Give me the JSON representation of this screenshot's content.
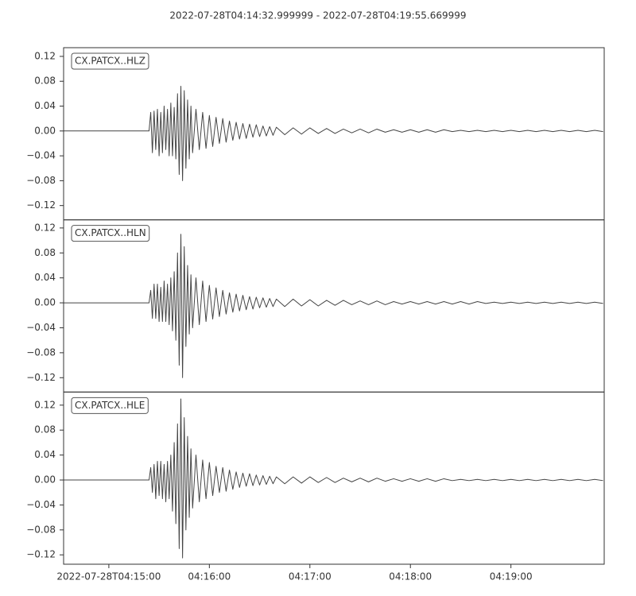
{
  "title": "2022-07-28T04:14:32.999999  -  2022-07-28T04:19:55.669999",
  "chart_data": [
    {
      "type": "line",
      "label": "CX.PATCX..HLZ",
      "color": "#444444",
      "xlim": [
        15272.999999,
        15595.669999
      ],
      "ylim": [
        -0.143,
        0.134
      ],
      "yticks": [
        {
          "value": -0.12,
          "label": "−0.12"
        },
        {
          "value": -0.08,
          "label": "−0.08"
        },
        {
          "value": -0.04,
          "label": "−0.04"
        },
        {
          "value": 0,
          "label": "0.00"
        },
        {
          "value": 0.04,
          "label": "0.04"
        },
        {
          "value": 0.08,
          "label": "0.08"
        },
        {
          "value": 0.12,
          "label": "0.12"
        }
      ],
      "x": [
        15273,
        15324,
        15325,
        15326,
        15327,
        15328,
        15329,
        15330,
        15331,
        15332,
        15333,
        15334,
        15335,
        15336,
        15337,
        15338,
        15339,
        15340,
        15341,
        15342,
        15343,
        15344,
        15345,
        15346,
        15347,
        15348,
        15349,
        15350,
        15352,
        15354,
        15356,
        15358,
        15360,
        15362,
        15364,
        15366,
        15368,
        15370,
        15372,
        15374,
        15376,
        15378,
        15380,
        15382,
        15384,
        15386,
        15388,
        15390,
        15392,
        15394,
        15396,
        15398,
        15400,
        15405,
        15410,
        15415,
        15420,
        15425,
        15430,
        15435,
        15440,
        15445,
        15450,
        15455,
        15460,
        15465,
        15470,
        15475,
        15480,
        15485,
        15490,
        15495,
        15500,
        15505,
        15510,
        15515,
        15520,
        15525,
        15530,
        15535,
        15540,
        15545,
        15550,
        15555,
        15560,
        15565,
        15570,
        15575,
        15580,
        15585,
        15590,
        15595
      ],
      "values": [
        0,
        0,
        0.03,
        -0.035,
        0.032,
        -0.03,
        0.035,
        -0.04,
        0.03,
        -0.035,
        0.04,
        -0.03,
        0.035,
        -0.04,
        0.045,
        -0.04,
        0.038,
        -0.045,
        0.06,
        -0.07,
        0.072,
        -0.08,
        0.065,
        -0.06,
        0.05,
        -0.045,
        0.04,
        -0.035,
        0.035,
        -0.03,
        0.03,
        -0.028,
        0.025,
        -0.025,
        0.022,
        -0.02,
        0.02,
        -0.018,
        0.016,
        -0.015,
        0.014,
        -0.013,
        0.012,
        -0.012,
        0.011,
        -0.01,
        0.01,
        -0.009,
        0.008,
        -0.008,
        0.007,
        -0.007,
        0.006,
        -0.006,
        0.005,
        -0.005,
        0.005,
        -0.004,
        0.004,
        -0.004,
        0.003,
        -0.003,
        0.003,
        -0.003,
        0.003,
        -0.002,
        0.002,
        -0.002,
        0.002,
        -0.002,
        0.002,
        -0.002,
        0.002,
        -0.001,
        0.001,
        -0.001,
        0.001,
        -0.001,
        0.001,
        -0.001,
        0.001,
        -0.001,
        0.001,
        -0.001,
        0.001,
        -0.001,
        0.001,
        -0.001,
        0.001,
        -0.001,
        0.001,
        -0.001
      ]
    },
    {
      "type": "line",
      "label": "CX.PATCX..HLN",
      "color": "#444444",
      "xlim": [
        15272.999999,
        15595.669999
      ],
      "ylim": [
        -0.143,
        0.133
      ],
      "yticks": [
        {
          "value": -0.12,
          "label": "−0.12"
        },
        {
          "value": -0.08,
          "label": "−0.08"
        },
        {
          "value": -0.04,
          "label": "−0.04"
        },
        {
          "value": 0,
          "label": "0.00"
        },
        {
          "value": 0.04,
          "label": "0.04"
        },
        {
          "value": 0.08,
          "label": "0.08"
        },
        {
          "value": 0.12,
          "label": "0.12"
        }
      ],
      "x": [
        15273,
        15324,
        15325,
        15326,
        15327,
        15328,
        15329,
        15330,
        15331,
        15332,
        15333,
        15334,
        15335,
        15336,
        15337,
        15338,
        15339,
        15340,
        15341,
        15342,
        15343,
        15344,
        15345,
        15346,
        15347,
        15348,
        15349,
        15350,
        15352,
        15354,
        15356,
        15358,
        15360,
        15362,
        15364,
        15366,
        15368,
        15370,
        15372,
        15374,
        15376,
        15378,
        15380,
        15382,
        15384,
        15386,
        15388,
        15390,
        15392,
        15394,
        15396,
        15398,
        15400,
        15405,
        15410,
        15415,
        15420,
        15425,
        15430,
        15435,
        15440,
        15445,
        15450,
        15455,
        15460,
        15465,
        15470,
        15475,
        15480,
        15485,
        15490,
        15495,
        15500,
        15505,
        15510,
        15515,
        15520,
        15525,
        15530,
        15535,
        15540,
        15545,
        15550,
        15555,
        15560,
        15565,
        15570,
        15575,
        15580,
        15585,
        15590,
        15595
      ],
      "values": [
        0,
        0,
        0.02,
        -0.025,
        0.03,
        -0.025,
        0.03,
        -0.03,
        0.025,
        -0.03,
        0.035,
        -0.03,
        0.03,
        -0.035,
        0.04,
        -0.045,
        0.05,
        -0.06,
        0.08,
        -0.1,
        0.11,
        -0.12,
        0.09,
        -0.07,
        0.06,
        -0.05,
        0.045,
        -0.04,
        0.04,
        -0.035,
        0.035,
        -0.03,
        0.028,
        -0.026,
        0.024,
        -0.022,
        0.02,
        -0.018,
        0.016,
        -0.015,
        0.014,
        -0.013,
        0.012,
        -0.011,
        0.01,
        -0.01,
        0.009,
        -0.008,
        0.008,
        -0.007,
        0.007,
        -0.006,
        0.006,
        -0.006,
        0.006,
        -0.005,
        0.005,
        -0.005,
        0.004,
        -0.004,
        0.004,
        -0.003,
        0.003,
        -0.003,
        0.003,
        -0.003,
        0.002,
        -0.002,
        0.002,
        -0.002,
        0.002,
        -0.002,
        0.002,
        -0.002,
        0.002,
        -0.002,
        0.002,
        -0.001,
        0.001,
        -0.001,
        0.001,
        -0.001,
        0.001,
        -0.001,
        0.001,
        -0.001,
        0.001,
        -0.001,
        0.001,
        -0.001,
        0.001,
        -0.001
      ]
    },
    {
      "type": "line",
      "label": "CX.PATCX..HLE",
      "color": "#444444",
      "xlim": [
        15272.999999,
        15595.669999
      ],
      "ylim": [
        -0.135,
        0.141
      ],
      "yticks": [
        {
          "value": -0.12,
          "label": "−0.12"
        },
        {
          "value": -0.08,
          "label": "−0.08"
        },
        {
          "value": -0.04,
          "label": "−0.04"
        },
        {
          "value": 0,
          "label": "0.00"
        },
        {
          "value": 0.04,
          "label": "0.04"
        },
        {
          "value": 0.08,
          "label": "0.08"
        },
        {
          "value": 0.12,
          "label": "0.12"
        }
      ],
      "xticks": [
        {
          "value": 15300,
          "label": "2022-07-28T04:15:00"
        },
        {
          "value": 15360,
          "label": "04:16:00"
        },
        {
          "value": 15420,
          "label": "04:17:00"
        },
        {
          "value": 15480,
          "label": "04:18:00"
        },
        {
          "value": 15540,
          "label": "04:19:00"
        }
      ],
      "x": [
        15273,
        15324,
        15325,
        15326,
        15327,
        15328,
        15329,
        15330,
        15331,
        15332,
        15333,
        15334,
        15335,
        15336,
        15337,
        15338,
        15339,
        15340,
        15341,
        15342,
        15343,
        15344,
        15345,
        15346,
        15347,
        15348,
        15349,
        15350,
        15352,
        15354,
        15356,
        15358,
        15360,
        15362,
        15364,
        15366,
        15368,
        15370,
        15372,
        15374,
        15376,
        15378,
        15380,
        15382,
        15384,
        15386,
        15388,
        15390,
        15392,
        15394,
        15396,
        15398,
        15400,
        15405,
        15410,
        15415,
        15420,
        15425,
        15430,
        15435,
        15440,
        15445,
        15450,
        15455,
        15460,
        15465,
        15470,
        15475,
        15480,
        15485,
        15490,
        15495,
        15500,
        15505,
        15510,
        15515,
        15520,
        15525,
        15530,
        15535,
        15540,
        15545,
        15550,
        15555,
        15560,
        15565,
        15570,
        15575,
        15580,
        15585,
        15590,
        15595
      ],
      "values": [
        0,
        0,
        0.02,
        -0.02,
        0.025,
        -0.03,
        0.03,
        -0.025,
        0.03,
        -0.03,
        0.025,
        -0.035,
        0.03,
        -0.03,
        0.04,
        -0.05,
        0.06,
        -0.07,
        0.09,
        -0.11,
        0.13,
        -0.125,
        0.1,
        -0.08,
        0.07,
        -0.06,
        0.05,
        -0.045,
        0.04,
        -0.035,
        0.032,
        -0.03,
        0.028,
        -0.025,
        0.022,
        -0.02,
        0.02,
        -0.018,
        0.016,
        -0.015,
        0.013,
        -0.012,
        0.011,
        -0.01,
        0.01,
        -0.009,
        0.008,
        -0.008,
        0.007,
        -0.007,
        0.006,
        -0.006,
        0.005,
        -0.006,
        0.005,
        -0.005,
        0.005,
        -0.004,
        0.004,
        -0.004,
        0.003,
        -0.003,
        0.003,
        -0.003,
        0.003,
        -0.002,
        0.002,
        -0.002,
        0.002,
        -0.002,
        0.002,
        -0.002,
        0.002,
        -0.001,
        0.001,
        -0.001,
        0.001,
        -0.001,
        0.001,
        -0.001,
        0.001,
        -0.001,
        0.001,
        -0.001,
        0.001,
        -0.001,
        0.001,
        -0.001,
        0.001,
        -0.001,
        0.001,
        -0.001
      ]
    }
  ]
}
